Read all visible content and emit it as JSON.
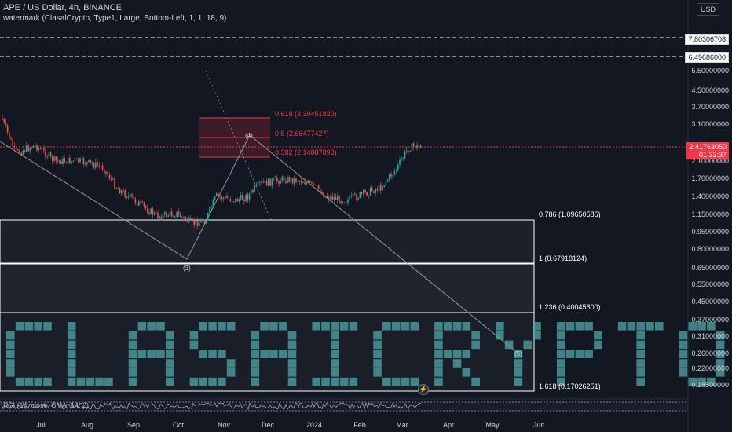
{
  "header": {
    "symbol_line": "APE / US Dollar, 4h, BINANCE",
    "indicator_line": "watermark (ClasalCrypto, Type1, Large, Bottom-Left, 1, 1, 18, 9)",
    "rsi_legend": "RSI (14, close, SMA, 14, 2)"
  },
  "price_axis": {
    "currency": "USD",
    "ticks": [
      "5.50000000",
      "4.50000000",
      "3.70000000",
      "3.10000000",
      "2.10000000",
      "1.70000000",
      "1.40000000",
      "1.15000000",
      "0.95000000",
      "0.80000000",
      "0.65000000",
      "0.55000000",
      "0.45000000",
      "0.37000000",
      "0.31000000",
      "0.26000000",
      "0.22000000",
      "0.18500000"
    ],
    "boxed_levels": [
      "7.80306708",
      "6.49686000"
    ],
    "current_price": "2.41763050",
    "countdown": "01:32:37"
  },
  "time_axis": {
    "labels": [
      "Jul",
      "Aug",
      "Sep",
      "Oct",
      "Nov",
      "Dec",
      "2024",
      "Feb",
      "Mar",
      "Apr",
      "May",
      "Jun"
    ]
  },
  "fib_upper": [
    {
      "ratio": "0.618",
      "value": "3.30451820"
    },
    {
      "ratio": "0.5",
      "value": "2.66477427"
    },
    {
      "ratio": "0.382",
      "value": "2.14887893"
    }
  ],
  "fib_lower": [
    {
      "ratio": "0.786",
      "value": "1.09650585"
    },
    {
      "ratio": "1",
      "value": "0.67918124"
    },
    {
      "ratio": "1.236",
      "value": "0.40045800"
    },
    {
      "ratio": "1.618",
      "value": "0.17026251"
    }
  ],
  "waves": {
    "w3": "(3)",
    "w4": "(4)",
    "w5": "(5)"
  },
  "watermark_text": "CLASAICRYPTO",
  "colors": {
    "background": "#131722",
    "up": "#26a69a",
    "down": "#ef5350",
    "fib_upper": "#f23645",
    "fib_lower": "#ffffff",
    "watermark": "#4fa8a8",
    "rsi": "#b2b5be"
  }
}
